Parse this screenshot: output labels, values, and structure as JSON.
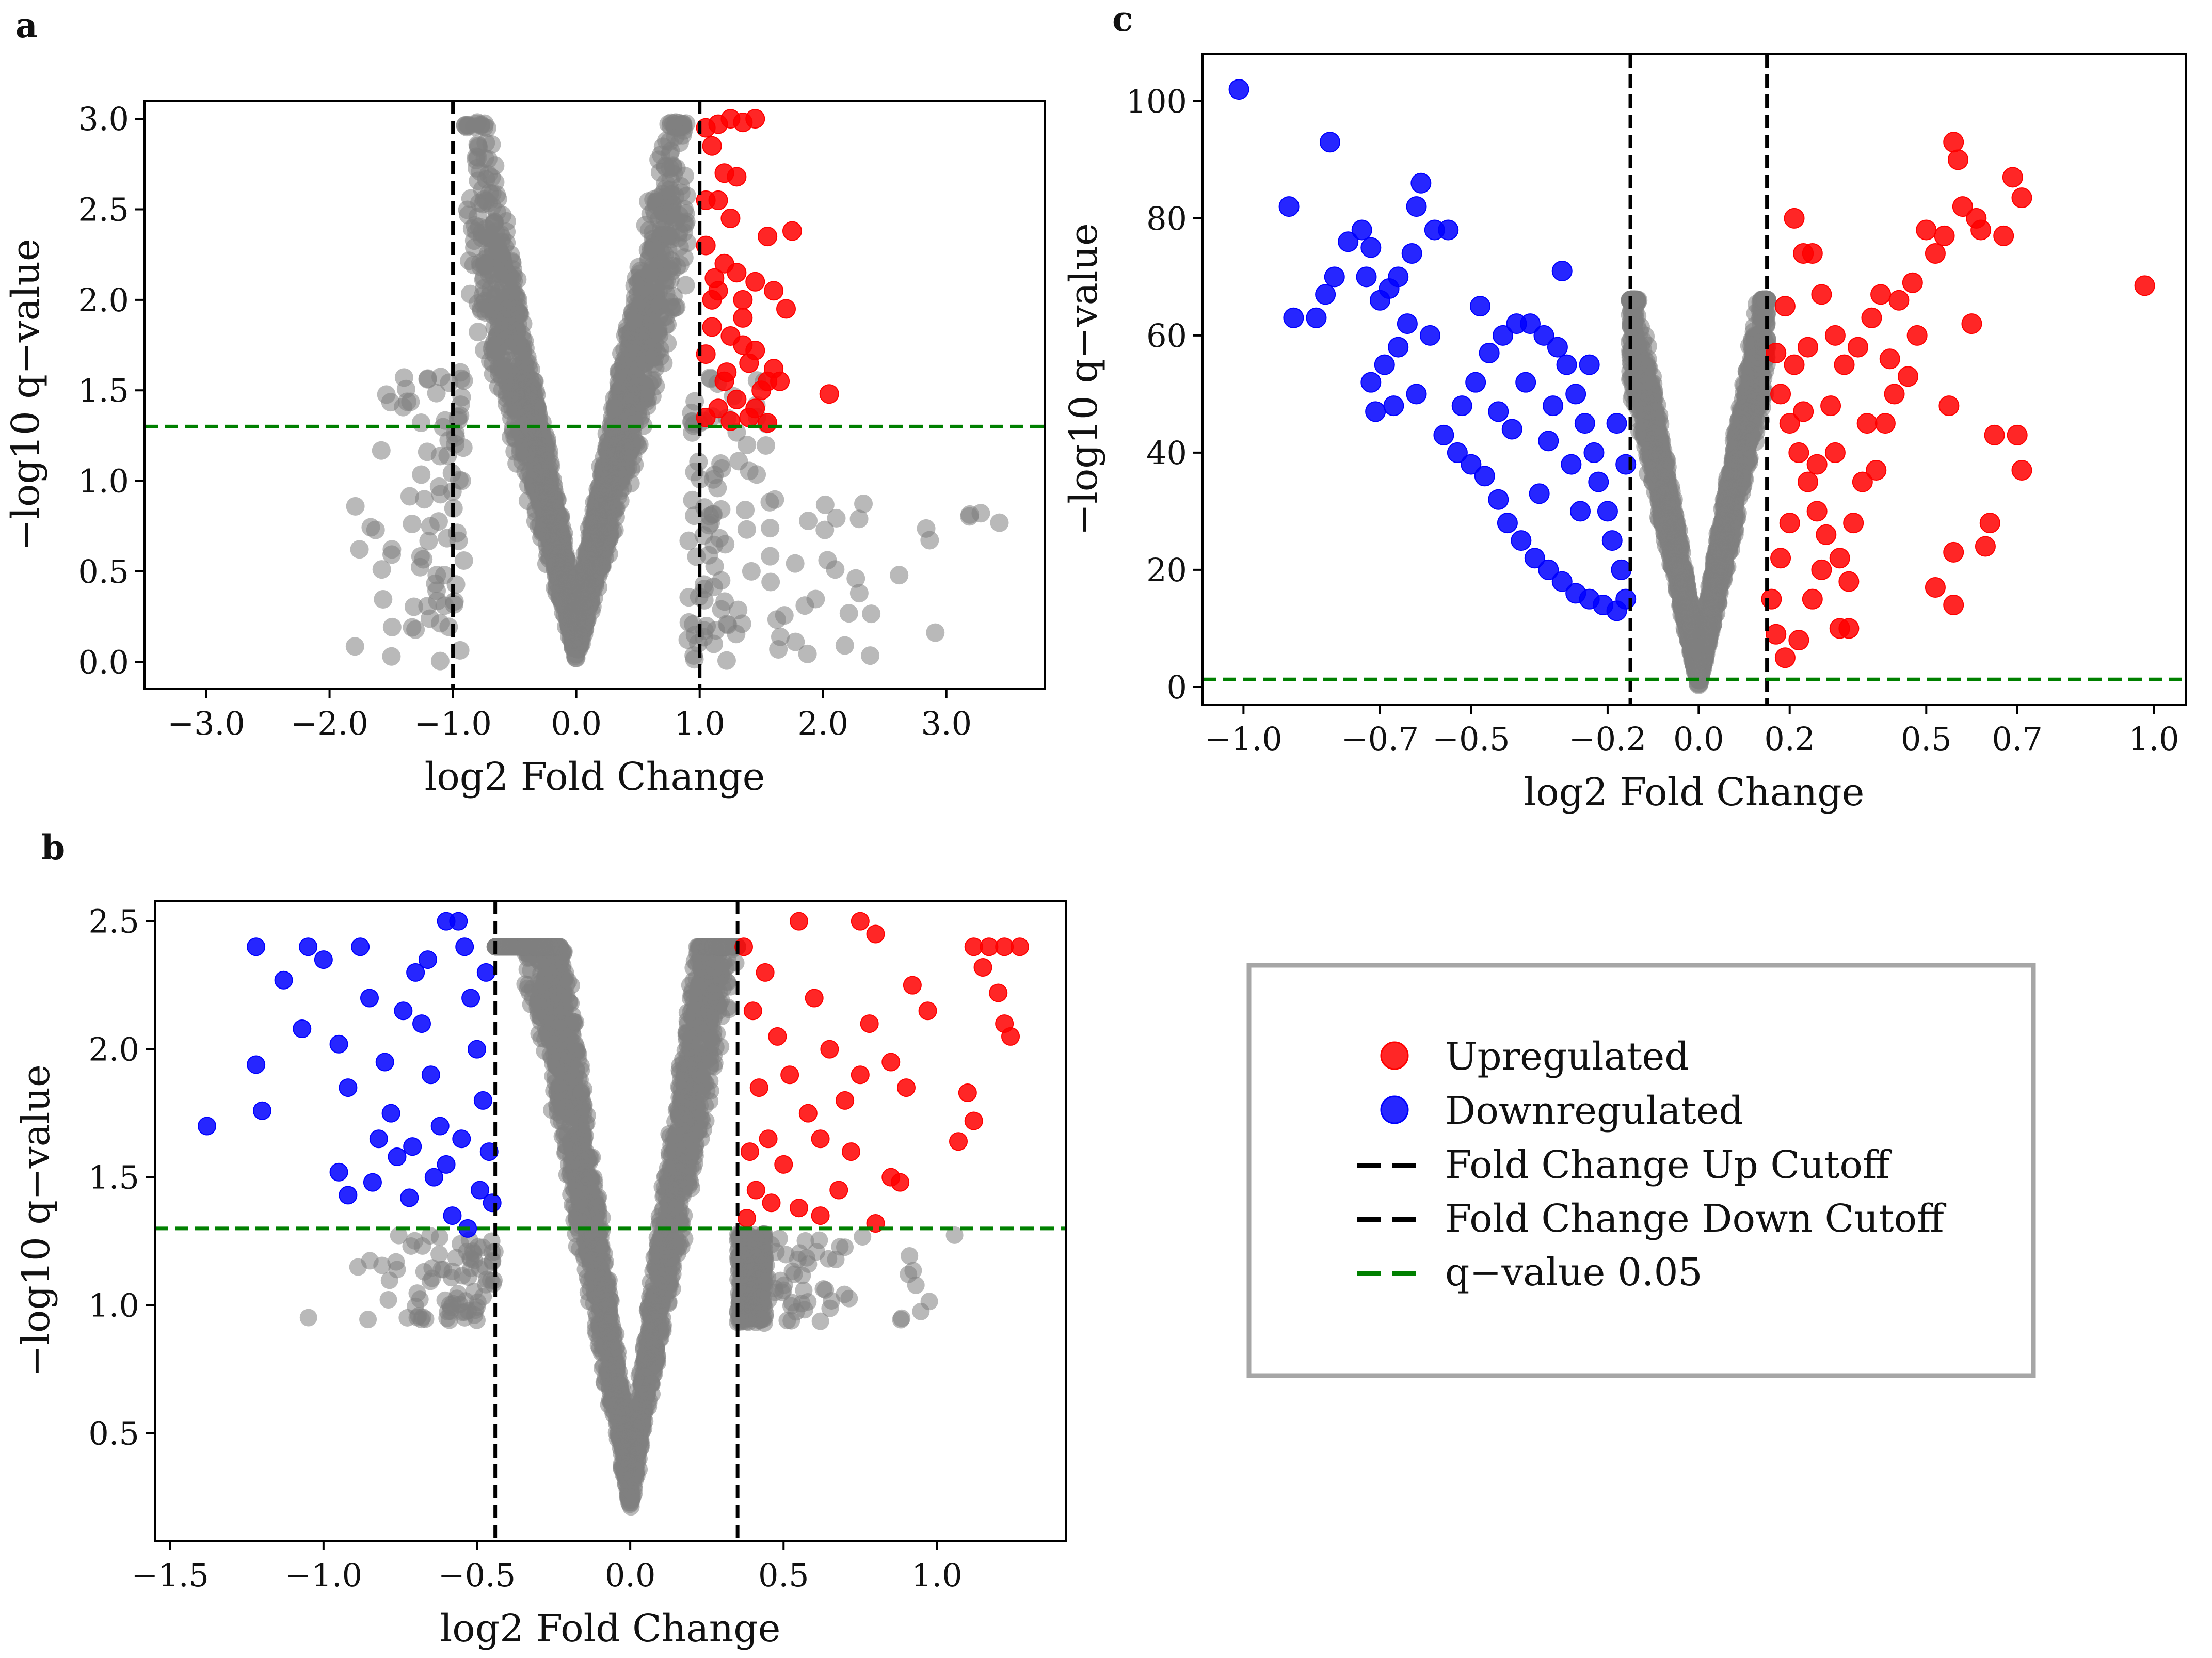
{
  "panel_labels": [
    "a",
    "b",
    "c"
  ],
  "colors": {
    "up": "#ff0000",
    "down": "#0000ff",
    "ns": "#808080",
    "fc_cutoff": "#000000",
    "q_cutoff": "#008000",
    "legend_border": "#a6a6a6"
  },
  "legend": {
    "items": [
      {
        "label": "Upregulated",
        "kind": "marker",
        "color_key": "up"
      },
      {
        "label": "Downregulated",
        "kind": "marker",
        "color_key": "down"
      },
      {
        "label": "Fold Change Up Cutoff",
        "kind": "dash",
        "color_key": "fc_cutoff"
      },
      {
        "label": "Fold Change Down Cutoff",
        "kind": "dash",
        "color_key": "fc_cutoff"
      },
      {
        "label": "q−value 0.05",
        "kind": "dash",
        "color_key": "q_cutoff"
      }
    ]
  },
  "chart_data": [
    {
      "id": "a",
      "type": "scatter",
      "title": "",
      "xlabel": "log2 Fold Change",
      "ylabel": "−log10 q−value",
      "xlim": [
        -3.5,
        3.8
      ],
      "ylim": [
        -0.15,
        3.1
      ],
      "xticks": [
        -3.0,
        -2.0,
        -1.0,
        0.0,
        1.0,
        2.0,
        3.0
      ],
      "xtick_labels": [
        "−3.0",
        "−2.0",
        "−1.0",
        "0.0",
        "1.0",
        "2.0",
        "3.0"
      ],
      "yticks": [
        0.0,
        0.5,
        1.0,
        1.5,
        2.0,
        2.5,
        3.0
      ],
      "ytick_labels": [
        "0.0",
        "0.5",
        "1.0",
        "1.5",
        "2.0",
        "2.5",
        "3.0"
      ],
      "fc_cutoffs": [
        -1.0,
        1.0
      ],
      "q_cutoff": 1.3,
      "up_points": [
        [
          1.05,
          2.95
        ],
        [
          1.15,
          2.97
        ],
        [
          1.25,
          3.0
        ],
        [
          1.35,
          2.98
        ],
        [
          1.45,
          3.0
        ],
        [
          1.1,
          2.85
        ],
        [
          1.2,
          2.7
        ],
        [
          1.3,
          2.68
        ],
        [
          1.15,
          2.55
        ],
        [
          1.25,
          2.45
        ],
        [
          1.05,
          2.3
        ],
        [
          1.2,
          2.2
        ],
        [
          1.3,
          2.15
        ],
        [
          1.15,
          2.05
        ],
        [
          1.45,
          2.1
        ],
        [
          1.55,
          2.35
        ],
        [
          1.75,
          2.38
        ],
        [
          1.6,
          2.05
        ],
        [
          1.7,
          1.95
        ],
        [
          1.1,
          1.85
        ],
        [
          1.25,
          1.8
        ],
        [
          1.35,
          1.75
        ],
        [
          1.05,
          1.7
        ],
        [
          1.4,
          1.65
        ],
        [
          1.6,
          1.62
        ],
        [
          1.65,
          1.55
        ],
        [
          1.55,
          1.55
        ],
        [
          1.2,
          1.55
        ],
        [
          1.3,
          1.45
        ],
        [
          1.15,
          1.4
        ],
        [
          1.45,
          1.4
        ],
        [
          1.05,
          1.35
        ],
        [
          1.25,
          1.33
        ],
        [
          1.55,
          1.32
        ],
        [
          2.05,
          1.48
        ],
        [
          1.35,
          1.9
        ],
        [
          1.45,
          1.72
        ],
        [
          1.1,
          2.0
        ],
        [
          1.5,
          1.5
        ],
        [
          1.05,
          2.55
        ],
        [
          1.35,
          2.0
        ],
        [
          1.12,
          2.12
        ],
        [
          1.22,
          1.6
        ],
        [
          1.4,
          1.35
        ]
      ],
      "down_points": []
    },
    {
      "id": "b",
      "type": "scatter",
      "title": "",
      "xlabel": "log2 Fold Change",
      "ylabel": "−log10 q−value",
      "xlim": [
        -1.55,
        1.42
      ],
      "ylim": [
        0.08,
        2.58
      ],
      "xticks": [
        -1.5,
        -1.0,
        -0.5,
        0.0,
        0.5,
        1.0
      ],
      "xtick_labels": [
        "−1.5",
        "−1.0",
        "−0.5",
        "0.0",
        "0.5",
        "1.0"
      ],
      "yticks": [
        0.5,
        1.0,
        1.5,
        2.0,
        2.5
      ],
      "ytick_labels": [
        "0.5",
        "1.0",
        "1.5",
        "2.0",
        "2.5"
      ],
      "fc_cutoffs": [
        -0.44,
        0.35
      ],
      "q_cutoff": 1.3,
      "up_points": [
        [
          1.12,
          2.4
        ],
        [
          1.17,
          2.4
        ],
        [
          1.22,
          2.4
        ],
        [
          1.27,
          2.4
        ],
        [
          1.15,
          2.32
        ],
        [
          1.2,
          2.22
        ],
        [
          1.22,
          2.1
        ],
        [
          1.24,
          2.05
        ],
        [
          1.1,
          1.83
        ],
        [
          1.12,
          1.72
        ],
        [
          1.07,
          1.64
        ],
        [
          0.8,
          2.45
        ],
        [
          0.75,
          2.5
        ],
        [
          0.55,
          2.5
        ],
        [
          0.92,
          2.25
        ],
        [
          0.97,
          2.15
        ],
        [
          0.85,
          1.95
        ],
        [
          0.9,
          1.85
        ],
        [
          0.85,
          1.5
        ],
        [
          0.8,
          1.32
        ],
        [
          0.88,
          1.48
        ],
        [
          0.6,
          2.2
        ],
        [
          0.65,
          2.0
        ],
        [
          0.7,
          1.8
        ],
        [
          0.72,
          1.6
        ],
        [
          0.68,
          1.45
        ],
        [
          0.62,
          1.35
        ],
        [
          0.58,
          1.75
        ],
        [
          0.52,
          1.9
        ],
        [
          0.48,
          2.05
        ],
        [
          0.44,
          2.3
        ],
        [
          0.4,
          2.15
        ],
        [
          0.42,
          1.85
        ],
        [
          0.45,
          1.65
        ],
        [
          0.5,
          1.55
        ],
        [
          0.46,
          1.4
        ],
        [
          0.38,
          1.34
        ],
        [
          0.37,
          2.4
        ],
        [
          0.39,
          1.6
        ],
        [
          0.41,
          1.45
        ],
        [
          0.55,
          1.38
        ],
        [
          0.62,
          1.65
        ],
        [
          0.78,
          2.1
        ],
        [
          0.75,
          1.9
        ]
      ],
      "down_points": [
        [
          -1.38,
          1.7
        ],
        [
          -1.22,
          2.4
        ],
        [
          -1.2,
          1.76
        ],
        [
          -1.22,
          1.94
        ],
        [
          -1.13,
          2.27
        ],
        [
          -1.07,
          2.08
        ],
        [
          -1.05,
          2.4
        ],
        [
          -1.0,
          2.35
        ],
        [
          -0.95,
          2.02
        ],
        [
          -0.92,
          1.85
        ],
        [
          -0.95,
          1.52
        ],
        [
          -0.92,
          1.43
        ],
        [
          -0.88,
          2.4
        ],
        [
          -0.85,
          2.2
        ],
        [
          -0.8,
          1.95
        ],
        [
          -0.78,
          1.75
        ],
        [
          -0.76,
          1.58
        ],
        [
          -0.72,
          1.42
        ],
        [
          -0.7,
          2.3
        ],
        [
          -0.68,
          2.1
        ],
        [
          -0.65,
          1.9
        ],
        [
          -0.62,
          1.7
        ],
        [
          -0.6,
          1.55
        ],
        [
          -0.58,
          1.35
        ],
        [
          -0.56,
          2.5
        ],
        [
          -0.54,
          2.4
        ],
        [
          -0.52,
          2.2
        ],
        [
          -0.5,
          2.0
        ],
        [
          -0.48,
          1.8
        ],
        [
          -0.46,
          1.6
        ],
        [
          -0.45,
          1.4
        ],
        [
          -0.6,
          2.5
        ],
        [
          -0.66,
          2.35
        ],
        [
          -0.74,
          2.15
        ],
        [
          -0.82,
          1.65
        ],
        [
          -0.84,
          1.48
        ],
        [
          -0.55,
          1.65
        ],
        [
          -0.49,
          1.45
        ],
        [
          -0.53,
          1.3
        ],
        [
          -0.47,
          2.3
        ],
        [
          -0.64,
          1.5
        ],
        [
          -0.71,
          1.62
        ]
      ],
      "ns_plateau_y": 2.4
    },
    {
      "id": "c",
      "type": "scatter",
      "title": "",
      "xlabel": "log2 Fold Change",
      "ylabel": "−log10 q−value",
      "xlim": [
        -1.09,
        1.07
      ],
      "ylim": [
        -3,
        108
      ],
      "xticks": [
        -1.0,
        -0.7,
        -0.5,
        -0.2,
        0.0,
        0.2,
        0.5,
        0.7,
        1.0
      ],
      "xtick_labels": [
        "−1.0",
        "−0.7",
        "−0.5",
        "−0.2",
        "0.0",
        "0.2",
        "0.5",
        "0.7",
        "1.0"
      ],
      "yticks": [
        0,
        20,
        40,
        60,
        80,
        100
      ],
      "ytick_labels": [
        "0",
        "20",
        "40",
        "60",
        "80",
        "100"
      ],
      "fc_cutoffs": [
        -0.15,
        0.15
      ],
      "q_cutoff": 1.3,
      "up_points": [
        [
          0.98,
          68.5
        ],
        [
          0.71,
          83.5
        ],
        [
          0.69,
          87
        ],
        [
          0.67,
          77
        ],
        [
          0.62,
          78
        ],
        [
          0.61,
          80
        ],
        [
          0.58,
          82
        ],
        [
          0.56,
          93
        ],
        [
          0.57,
          90
        ],
        [
          0.54,
          77
        ],
        [
          0.52,
          74
        ],
        [
          0.5,
          78
        ],
        [
          0.47,
          69
        ],
        [
          0.44,
          66
        ],
        [
          0.4,
          67
        ],
        [
          0.38,
          63
        ],
        [
          0.35,
          58
        ],
        [
          0.32,
          55
        ],
        [
          0.3,
          60
        ],
        [
          0.27,
          67
        ],
        [
          0.25,
          74
        ],
        [
          0.23,
          74
        ],
        [
          0.21,
          80
        ],
        [
          0.19,
          65
        ],
        [
          0.17,
          57
        ],
        [
          0.18,
          50
        ],
        [
          0.2,
          45
        ],
        [
          0.22,
          40
        ],
        [
          0.24,
          35
        ],
        [
          0.26,
          30
        ],
        [
          0.28,
          26
        ],
        [
          0.31,
          22
        ],
        [
          0.33,
          18
        ],
        [
          0.36,
          35
        ],
        [
          0.39,
          37
        ],
        [
          0.41,
          45
        ],
        [
          0.43,
          50
        ],
        [
          0.46,
          53
        ],
        [
          0.55,
          48
        ],
        [
          0.56,
          23
        ],
        [
          0.63,
          24
        ],
        [
          0.64,
          28
        ],
        [
          0.65,
          43
        ],
        [
          0.7,
          43
        ],
        [
          0.71,
          37
        ],
        [
          0.52,
          17
        ],
        [
          0.56,
          14
        ],
        [
          0.33,
          10
        ],
        [
          0.31,
          10
        ],
        [
          0.22,
          8
        ],
        [
          0.19,
          5
        ],
        [
          0.17,
          9
        ],
        [
          0.16,
          15
        ],
        [
          0.18,
          22
        ],
        [
          0.2,
          28
        ],
        [
          0.25,
          15
        ],
        [
          0.27,
          20
        ],
        [
          0.34,
          28
        ],
        [
          0.3,
          40
        ],
        [
          0.29,
          48
        ],
        [
          0.37,
          45
        ],
        [
          0.42,
          56
        ],
        [
          0.48,
          60
        ],
        [
          0.6,
          62
        ],
        [
          0.26,
          38
        ],
        [
          0.21,
          55
        ],
        [
          0.24,
          58
        ],
        [
          0.23,
          47
        ]
      ],
      "down_points": [
        [
          -1.01,
          102
        ],
        [
          -0.9,
          82
        ],
        [
          -0.81,
          93
        ],
        [
          -0.89,
          63
        ],
        [
          -0.84,
          63
        ],
        [
          -0.82,
          67
        ],
        [
          -0.8,
          70
        ],
        [
          -0.77,
          76
        ],
        [
          -0.74,
          78
        ],
        [
          -0.72,
          75
        ],
        [
          -0.73,
          70
        ],
        [
          -0.7,
          66
        ],
        [
          -0.68,
          68
        ],
        [
          -0.66,
          70
        ],
        [
          -0.63,
          74
        ],
        [
          -0.61,
          86
        ],
        [
          -0.62,
          82
        ],
        [
          -0.58,
          78
        ],
        [
          -0.55,
          78
        ],
        [
          -0.59,
          60
        ],
        [
          -0.64,
          62
        ],
        [
          -0.66,
          58
        ],
        [
          -0.69,
          55
        ],
        [
          -0.72,
          52
        ],
        [
          -0.71,
          47
        ],
        [
          -0.67,
          48
        ],
        [
          -0.62,
          50
        ],
        [
          -0.56,
          43
        ],
        [
          -0.53,
          40
        ],
        [
          -0.5,
          38
        ],
        [
          -0.47,
          36
        ],
        [
          -0.44,
          32
        ],
        [
          -0.42,
          28
        ],
        [
          -0.39,
          25
        ],
        [
          -0.36,
          22
        ],
        [
          -0.33,
          20
        ],
        [
          -0.3,
          18
        ],
        [
          -0.27,
          16
        ],
        [
          -0.24,
          15
        ],
        [
          -0.21,
          14
        ],
        [
          -0.18,
          13
        ],
        [
          -0.16,
          15
        ],
        [
          -0.17,
          20
        ],
        [
          -0.19,
          25
        ],
        [
          -0.2,
          30
        ],
        [
          -0.22,
          35
        ],
        [
          -0.23,
          40
        ],
        [
          -0.25,
          45
        ],
        [
          -0.27,
          50
        ],
        [
          -0.29,
          55
        ],
        [
          -0.31,
          58
        ],
        [
          -0.34,
          60
        ],
        [
          -0.37,
          62
        ],
        [
          -0.4,
          62
        ],
        [
          -0.43,
          60
        ],
        [
          -0.46,
          57
        ],
        [
          -0.49,
          52
        ],
        [
          -0.52,
          48
        ],
        [
          -0.41,
          44
        ],
        [
          -0.33,
          42
        ],
        [
          -0.28,
          38
        ],
        [
          -0.26,
          30
        ],
        [
          -0.35,
          33
        ],
        [
          -0.44,
          47
        ],
        [
          -0.3,
          71
        ],
        [
          -0.48,
          65
        ],
        [
          -0.38,
          52
        ],
        [
          -0.32,
          48
        ],
        [
          -0.24,
          55
        ],
        [
          -0.18,
          45
        ],
        [
          -0.16,
          38
        ]
      ]
    }
  ]
}
